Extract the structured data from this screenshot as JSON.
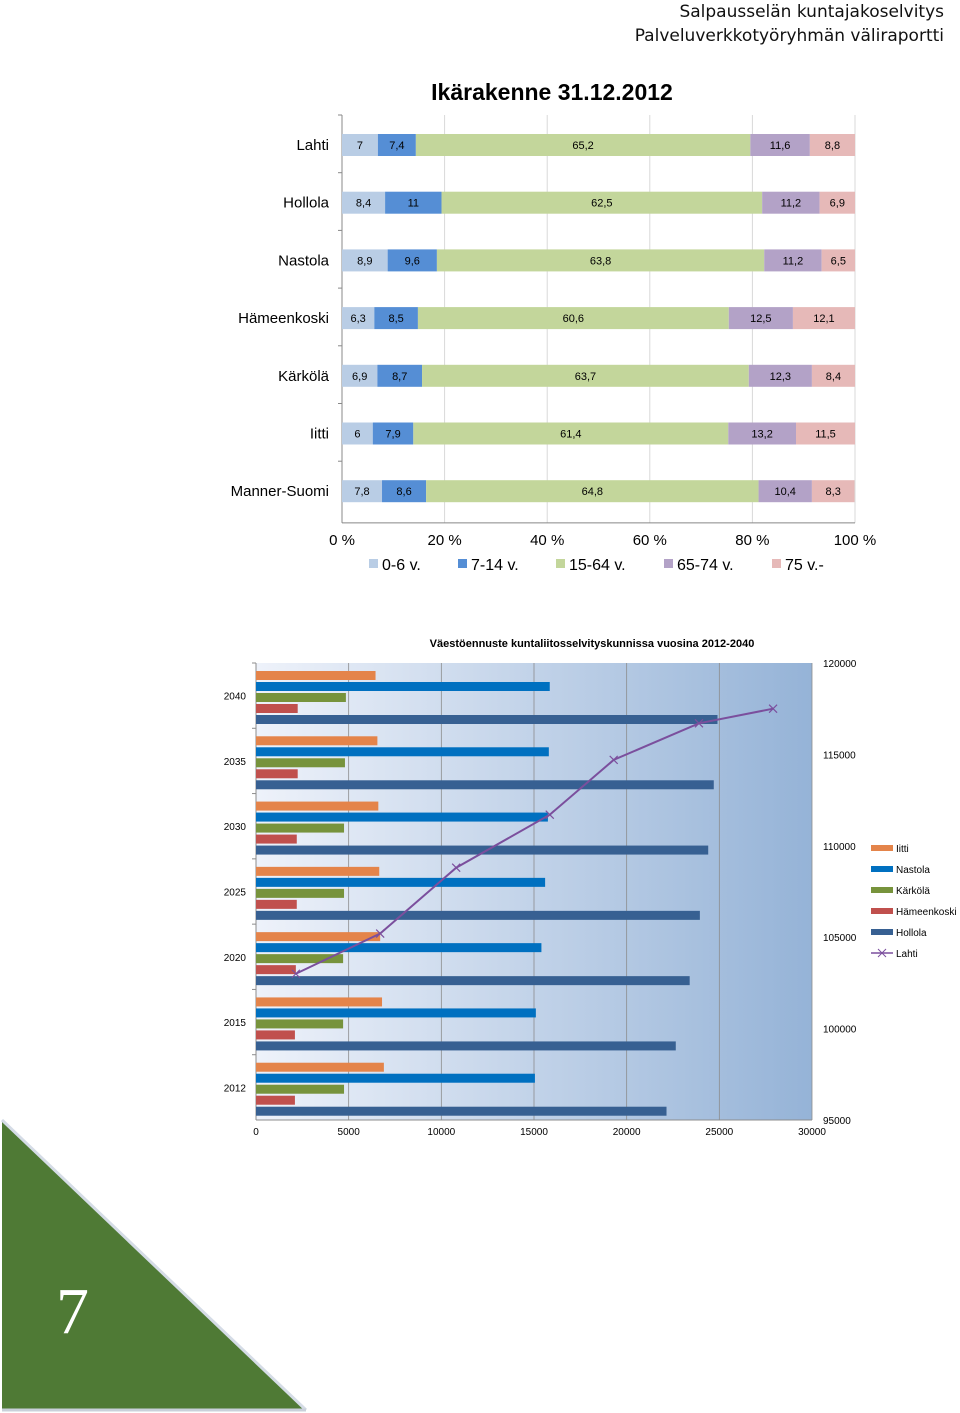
{
  "header": {
    "line1": "Salpausselän kuntajakoselvitys",
    "line2": "Palveluverkkotyöryhmän väliraportti"
  },
  "page_number": "7",
  "colors": {
    "age_0_6": "#b9cde5",
    "age_7_14": "#558ed5",
    "age_15_64": "#c3d69b",
    "age_65_74": "#b3a2c7",
    "age_75_plus": "#e6b9b8",
    "iitti": "#e4844a",
    "nastola": "#0070c0",
    "karkola": "#77933c",
    "hameenkoski": "#c0504d",
    "hollola": "#376092",
    "lahti": "#7b4f9d",
    "page_triangle": "#4f7a35"
  },
  "chart_data": [
    {
      "type": "bar",
      "orientation": "horizontal",
      "stacked": "percent",
      "title": "Ikärakenne 31.12.2012",
      "categories": [
        "Lahti",
        "Hollola",
        "Nastola",
        "Hämeenkoski",
        "Kärkölä",
        "Iitti",
        "Manner-Suomi"
      ],
      "series": [
        {
          "name": "0-6 v.",
          "color": "#b9cde5",
          "values": [
            7,
            8.4,
            8.9,
            6.3,
            6.9,
            6,
            7.8
          ],
          "labels": [
            "7",
            "8,4",
            "8,9",
            "6,3",
            "6,9",
            "6",
            "7,8"
          ]
        },
        {
          "name": "7-14 v.",
          "color": "#558ed5",
          "values": [
            7.4,
            11,
            9.6,
            8.5,
            8.7,
            7.9,
            8.6
          ],
          "labels": [
            "7,4",
            "11",
            "9,6",
            "8,5",
            "8,7",
            "7,9",
            "8,6"
          ]
        },
        {
          "name": "15-64 v.",
          "color": "#c3d69b",
          "values": [
            65.2,
            62.5,
            63.8,
            60.6,
            63.7,
            61.4,
            64.8
          ],
          "labels": [
            "65,2",
            "62,5",
            "63,8",
            "60,6",
            "63,7",
            "61,4",
            "64,8"
          ]
        },
        {
          "name": "65-74 v.",
          "color": "#b3a2c7",
          "values": [
            11.6,
            11.2,
            11.2,
            12.5,
            12.3,
            13.2,
            10.4
          ],
          "labels": [
            "11,6",
            "11,2",
            "11,2",
            "12,5",
            "12,3",
            "13,2",
            "10,4"
          ]
        },
        {
          "name": "75 v.-",
          "color": "#e6b9b8",
          "values": [
            8.8,
            6.9,
            6.5,
            12.1,
            8.4,
            11.5,
            8.3
          ],
          "labels": [
            "8,8",
            "6,9",
            "6,5",
            "12,1",
            "8,4",
            "11,5",
            "8,3"
          ]
        }
      ],
      "xlim": [
        0,
        100
      ],
      "xticks": [
        "0 %",
        "20 %",
        "40 %",
        "60 %",
        "80 %",
        "100 %"
      ],
      "legend": "bottom",
      "grid": true
    },
    {
      "type": "bar",
      "orientation": "horizontal",
      "title": "Väestöennuste kuntaliitosselvityskunnissa vuosina 2012-2040",
      "categories": [
        "2012",
        "2015",
        "2020",
        "2025",
        "2030",
        "2035",
        "2040"
      ],
      "series": [
        {
          "name": "Iitti",
          "color": "#e4844a",
          "values": [
            6900,
            6800,
            6700,
            6650,
            6600,
            6550,
            6450
          ]
        },
        {
          "name": "Nastola",
          "color": "#0070c0",
          "values": [
            15050,
            15100,
            15400,
            15600,
            15750,
            15800,
            15850
          ]
        },
        {
          "name": "Kärkölä",
          "color": "#77933c",
          "values": [
            4750,
            4700,
            4700,
            4750,
            4750,
            4800,
            4850
          ]
        },
        {
          "name": "Hämeenkoski",
          "color": "#c0504d",
          "values": [
            2100,
            2100,
            2150,
            2200,
            2200,
            2250,
            2250
          ]
        },
        {
          "name": "Hollola",
          "color": "#376092",
          "values": [
            22150,
            22650,
            23400,
            23950,
            24400,
            24700,
            24900
          ]
        }
      ],
      "line_series": {
        "name": "Lahti",
        "color": "#7b4f9d",
        "axis": "secondary",
        "points": [
          [
            2150,
            103000
          ],
          [
            6700,
            105200
          ],
          [
            10800,
            108800
          ],
          [
            15850,
            111700
          ],
          [
            19300,
            114700
          ],
          [
            23900,
            116700
          ],
          [
            27900,
            117500
          ]
        ]
      },
      "xlim": [
        0,
        30000
      ],
      "xticks": [
        "0",
        "5000",
        "10000",
        "15000",
        "20000",
        "25000",
        "30000"
      ],
      "y2lim": [
        95000,
        120000
      ],
      "y2ticks": [
        "95000",
        "100000",
        "105000",
        "110000",
        "115000",
        "120000"
      ],
      "legend_order": [
        "Iitti",
        "Nastola",
        "Kärkölä",
        "Hämeenkoski",
        "Hollola",
        "Lahti"
      ],
      "legend": "right",
      "grid": true
    }
  ]
}
